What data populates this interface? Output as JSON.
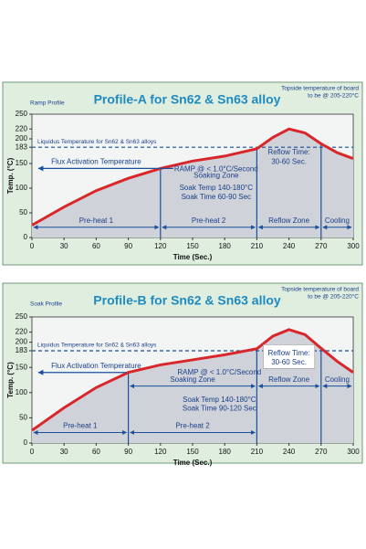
{
  "chart_data": [
    {
      "type": "line",
      "title": "Profile-A for Sn62 & Sn63 alloy",
      "corner_label": "Ramp Profile",
      "note": [
        "Topside temperature of board",
        "to be @ 205-220°C"
      ],
      "xlabel": "Time (Sec.)",
      "ylabel": "Temp. (°C)",
      "x": [
        0,
        30,
        60,
        90,
        120,
        150,
        180,
        210,
        225,
        240,
        255,
        270,
        285,
        300
      ],
      "values": [
        25,
        62,
        95,
        120,
        140,
        155,
        165,
        180,
        203,
        220,
        212,
        190,
        172,
        160
      ],
      "color": "#d9262b",
      "xlim": [
        0,
        300
      ],
      "xticks": [
        0,
        30,
        60,
        90,
        120,
        150,
        180,
        210,
        240,
        270,
        300
      ],
      "ylim": [
        0,
        250
      ],
      "yticks": [
        0,
        50,
        100,
        150,
        183,
        200,
        220,
        250
      ],
      "grid": false,
      "liquidus": {
        "label": "Liquidus Temperature for Sn62 & Sn63 alloys",
        "value": 183
      },
      "phases": [
        {
          "label": "Pre-heat 1",
          "start": 0,
          "end": 120
        },
        {
          "label": "Pre-heat 2",
          "start": 120,
          "end": 210
        },
        {
          "label": "Reflow Zone",
          "start": 210,
          "end": 270
        },
        {
          "label": "Cooling",
          "start": 270,
          "end": 300
        }
      ],
      "annotations": [
        "Flux Activation Temperature",
        "RAMP @ < 1.0°C/Second",
        "Soaking Zone",
        "Soak Temp 140-180°C",
        "Soak Time 60-90 Sec",
        "Reflow Time:",
        "30-60 Sec."
      ]
    },
    {
      "type": "line",
      "title": "Profile-B for Sn62 & Sn63 alloy",
      "corner_label": "Soak Profile",
      "note": [
        "Topside temperature of board",
        "to be @ 205-220°C"
      ],
      "xlabel": "Time (Sec.)",
      "ylabel": "Temp. (°C)",
      "x": [
        0,
        30,
        60,
        90,
        120,
        150,
        180,
        210,
        225,
        240,
        255,
        270,
        285,
        300
      ],
      "values": [
        25,
        70,
        110,
        140,
        155,
        165,
        175,
        187,
        212,
        225,
        215,
        188,
        162,
        140
      ],
      "color": "#d9262b",
      "xlim": [
        0,
        300
      ],
      "xticks": [
        0,
        30,
        60,
        90,
        120,
        150,
        180,
        210,
        240,
        270,
        300
      ],
      "ylim": [
        0,
        250
      ],
      "yticks": [
        0,
        50,
        100,
        150,
        183,
        200,
        220,
        250
      ],
      "grid": false,
      "liquidus": {
        "label": "Liquidus Temperature for Sn62 & Sn63 alloys",
        "value": 183
      },
      "phases": [
        {
          "label": "Pre-heat 1",
          "start": 0,
          "end": 90
        },
        {
          "label": "Pre-heat 2",
          "start": 90,
          "end": 210
        },
        {
          "label": "Soaking Zone",
          "start": 90,
          "end": 210
        },
        {
          "label": "Reflow Zone",
          "start": 210,
          "end": 270
        },
        {
          "label": "Cooling",
          "start": 270,
          "end": 300
        }
      ],
      "annotations": [
        "Flux Activation Temperature",
        "RAMP @ < 1.0°C/Second",
        "Soak Temp 140-180°C",
        "Soak Time 90-120 Sec",
        "Reflow Time:",
        "30-60 Sec."
      ]
    }
  ]
}
